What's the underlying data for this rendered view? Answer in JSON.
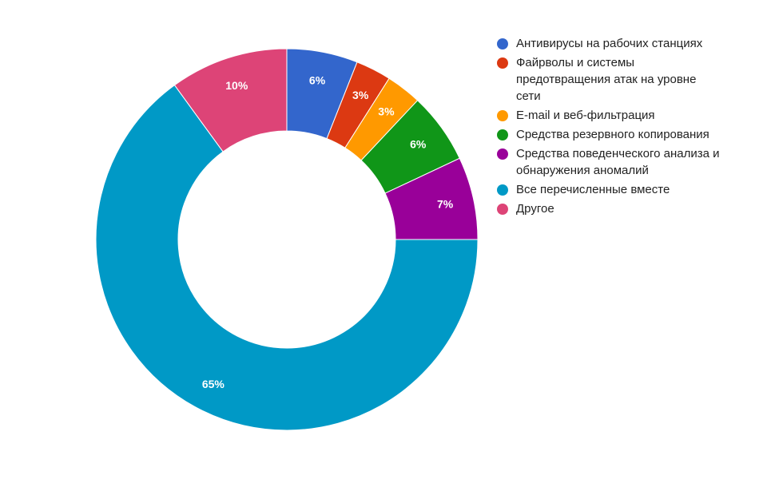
{
  "chart_data": {
    "type": "pie",
    "donut": true,
    "categories": [
      "Антивирусы на рабочих станциях",
      "Файрволы и системы предотвращения атак на уровне сети",
      "E-mail и веб-фильтрация",
      "Средства резервного копирования",
      "Средства поведенческого анализа и обнаружения аномалий",
      "Все перечисленные вместе",
      "Другое"
    ],
    "values": [
      6,
      3,
      3,
      6,
      7,
      65,
      10
    ],
    "data_labels": [
      "6%",
      "3%",
      "3%",
      "6%",
      "7%",
      "65%",
      "10%"
    ],
    "colors": [
      "#3366cc",
      "#dc3912",
      "#ff9900",
      "#109618",
      "#990099",
      "#0099c6",
      "#dd4477"
    ],
    "legend_position": "right"
  }
}
